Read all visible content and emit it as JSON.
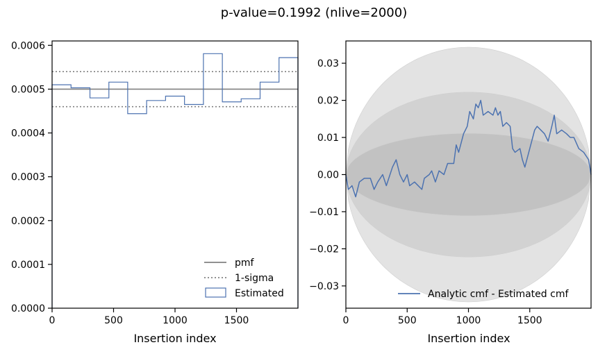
{
  "figure": {
    "title": "p-value=0.1992 (nlive=2000)"
  },
  "chart_data": [
    {
      "type": "histogram",
      "xlabel": "Insertion index",
      "ylabel": "",
      "xlim": [
        0,
        2000
      ],
      "ylim": [
        0,
        0.00061
      ],
      "xticks": [
        0,
        500,
        1000,
        1500
      ],
      "yticks": [
        0,
        0.0001,
        0.0002,
        0.0003,
        0.0004,
        0.0005,
        0.0006
      ],
      "ytick_labels": [
        "0.0000",
        "0.0001",
        "0.0002",
        "0.0003",
        "0.0004",
        "0.0005",
        "0.0006"
      ],
      "reference_lines": [
        {
          "name": "pmf",
          "y": 0.0005,
          "style": "solid",
          "color": "#808080"
        },
        {
          "name": "1-sigma",
          "y": 0.00054,
          "style": "dotted",
          "color": "#808080"
        },
        {
          "name": "1-sigma",
          "y": 0.00046,
          "style": "dotted",
          "color": "#808080"
        }
      ],
      "series": [
        {
          "name": "Estimated",
          "color": "#4c72b0",
          "bin_edges": [
            0,
            154,
            308,
            462,
            615,
            769,
            923,
            1077,
            1231,
            1385,
            1538,
            1692,
            1846,
            2000
          ],
          "values": [
            0.00051,
            0.000503,
            0.00048,
            0.000516,
            0.000444,
            0.000474,
            0.000484,
            0.000465,
            0.000581,
            0.000471,
            0.000478,
            0.000516,
            0.000572
          ]
        }
      ],
      "legend": {
        "placement": "lower-right",
        "entries": [
          {
            "label": "pmf",
            "kind": "solid-line",
            "color": "#808080"
          },
          {
            "label": "1-sigma",
            "kind": "dotted-line",
            "color": "#808080"
          },
          {
            "label": "Estimated",
            "kind": "box",
            "color": "#4c72b0"
          }
        ]
      }
    },
    {
      "type": "line",
      "xlabel": "Insertion index",
      "ylabel": "",
      "xlim": [
        0,
        2000
      ],
      "ylim": [
        -0.036,
        0.036
      ],
      "xticks": [
        0,
        500,
        1000,
        1500
      ],
      "yticks": [
        -0.03,
        -0.02,
        -0.01,
        0,
        0.01,
        0.02,
        0.03
      ],
      "ytick_labels": [
        "−0.03",
        "−0.02",
        "−0.01",
        "0.00",
        "0.01",
        "0.02",
        "0.03"
      ],
      "bands": [
        {
          "sigma_multiple": 3,
          "half_width_max": 0.0343,
          "color": "#e3e3e3"
        },
        {
          "sigma_multiple": 2,
          "half_width_max": 0.0222,
          "color": "#d2d2d2"
        },
        {
          "sigma_multiple": 1,
          "half_width_max": 0.0111,
          "color": "#c2c2c2"
        }
      ],
      "series": [
        {
          "name": "Analytic cmf - Estimated cmf",
          "color": "#4c72b0",
          "x": [
            0,
            20,
            50,
            80,
            110,
            150,
            200,
            230,
            260,
            300,
            330,
            380,
            410,
            440,
            470,
            500,
            520,
            560,
            590,
            620,
            640,
            680,
            700,
            730,
            760,
            800,
            830,
            880,
            900,
            920,
            960,
            990,
            1010,
            1040,
            1060,
            1080,
            1100,
            1120,
            1160,
            1200,
            1220,
            1240,
            1260,
            1280,
            1310,
            1340,
            1360,
            1380,
            1420,
            1440,
            1460,
            1500,
            1540,
            1560,
            1590,
            1620,
            1650,
            1680,
            1700,
            1720,
            1760,
            1800,
            1830,
            1860,
            1900,
            1940,
            1960,
            1980,
            2000
          ],
          "values": [
            0.0,
            -0.004,
            -0.003,
            -0.006,
            -0.002,
            -0.001,
            -0.001,
            -0.004,
            -0.002,
            0.0,
            -0.003,
            0.002,
            0.004,
            0.0,
            -0.002,
            0.0,
            -0.003,
            -0.002,
            -0.003,
            -0.004,
            -0.001,
            0.0,
            0.001,
            -0.002,
            0.001,
            0.0,
            0.003,
            0.003,
            0.008,
            0.006,
            0.011,
            0.013,
            0.017,
            0.015,
            0.019,
            0.018,
            0.02,
            0.016,
            0.017,
            0.016,
            0.018,
            0.016,
            0.017,
            0.013,
            0.014,
            0.013,
            0.007,
            0.006,
            0.007,
            0.004,
            0.002,
            0.007,
            0.012,
            0.013,
            0.012,
            0.011,
            0.009,
            0.013,
            0.016,
            0.011,
            0.012,
            0.011,
            0.01,
            0.01,
            0.007,
            0.006,
            0.005,
            0.004,
            0.0
          ]
        }
      ],
      "legend": {
        "placement": "lower-right",
        "entries": [
          {
            "label": "Analytic cmf - Estimated cmf",
            "kind": "solid-line",
            "color": "#4c72b0"
          }
        ]
      }
    }
  ]
}
